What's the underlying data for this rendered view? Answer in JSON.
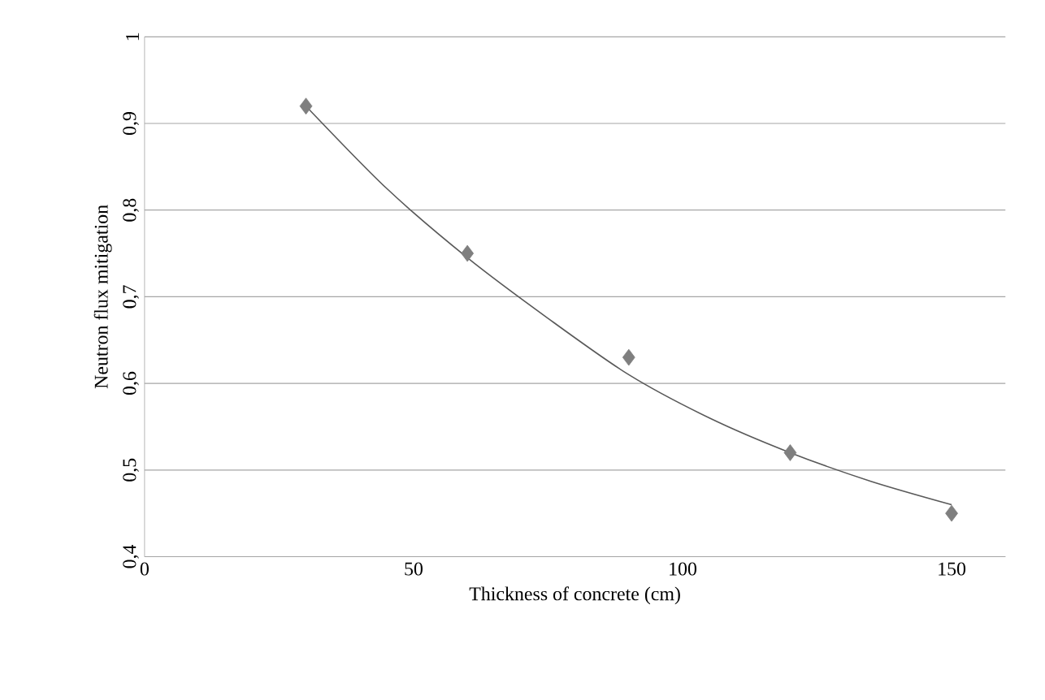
{
  "chart_data": {
    "type": "scatter",
    "xlabel": "Thickness of concrete (cm)",
    "ylabel": "Neutron flux mitigation",
    "xlim": [
      0,
      160
    ],
    "xticks": [
      0,
      50,
      100,
      150
    ],
    "ylim": [
      0.4,
      1
    ],
    "yticks": [
      {
        "value": 0.4,
        "label": "0,4"
      },
      {
        "value": 0.5,
        "label": "0,5"
      },
      {
        "value": 0.6,
        "label": "0,6"
      },
      {
        "value": 0.7,
        "label": "0,7"
      },
      {
        "value": 0.8,
        "label": "0,8"
      },
      {
        "value": 0.9,
        "label": "0,9"
      },
      {
        "value": 1,
        "label": "1"
      }
    ],
    "grid": "y",
    "marker": "diamond",
    "series": [
      {
        "color": "#7f7f7f",
        "x": [
          30,
          60,
          90,
          120,
          150
        ],
        "values": [
          0.92,
          0.75,
          0.63,
          0.52,
          0.45
        ]
      },
      {
        "type": "line",
        "color": "#595959",
        "marker": "none",
        "x": [
          30,
          45,
          60,
          75,
          90,
          105,
          120,
          135,
          150
        ],
        "values": [
          0.92,
          0.825,
          0.745,
          0.675,
          0.61,
          0.56,
          0.52,
          0.487,
          0.46
        ]
      }
    ]
  }
}
